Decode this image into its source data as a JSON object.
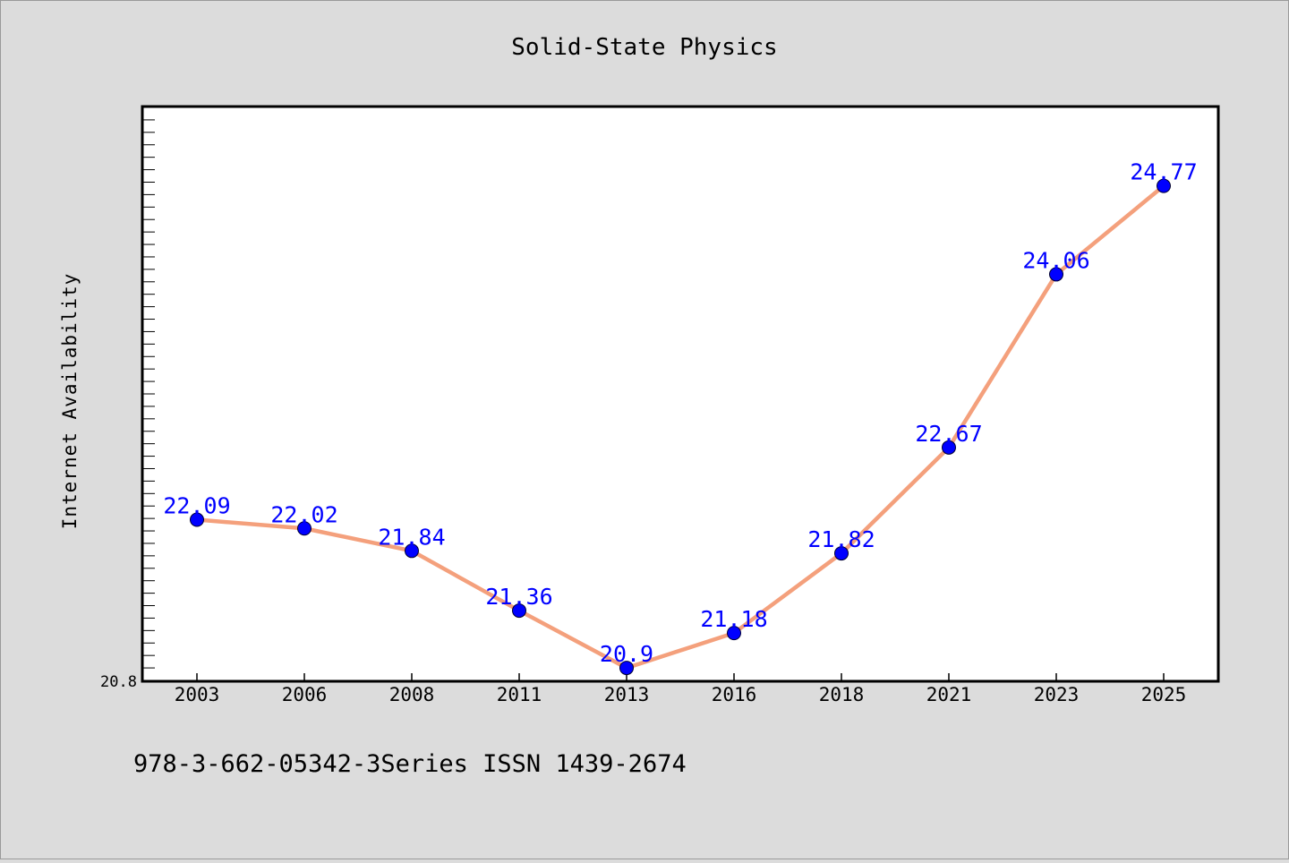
{
  "chart_data": {
    "type": "line",
    "title": "Solid-State Physics",
    "ylabel": "Internet Availability",
    "xlabel": "",
    "categories": [
      "2003",
      "2006",
      "2008",
      "2011",
      "2013",
      "2016",
      "2018",
      "2021",
      "2023",
      "2025"
    ],
    "series": [
      {
        "values": [
          22.09,
          22.02,
          21.84,
          21.36,
          20.9,
          21.18,
          21.82,
          22.67,
          24.06,
          24.77
        ]
      }
    ],
    "data_labels": [
      "22.09",
      "22.02",
      "21.84",
      "21.36",
      "20.9",
      "21.18",
      "21.82",
      "22.67",
      "24.06",
      "24.77"
    ],
    "y_tick_labels": [
      "20.8"
    ],
    "ylim": [
      20.8,
      25.4
    ],
    "grid": false,
    "legend": "none",
    "footer": "978-3-662-05342-3Series ISSN 1439-2674",
    "colors": {
      "line": "#f4a07c",
      "marker": "#0000ff",
      "label": "#0000ff",
      "background": "#dcdcdc",
      "plot_background": "#ffffff"
    }
  }
}
